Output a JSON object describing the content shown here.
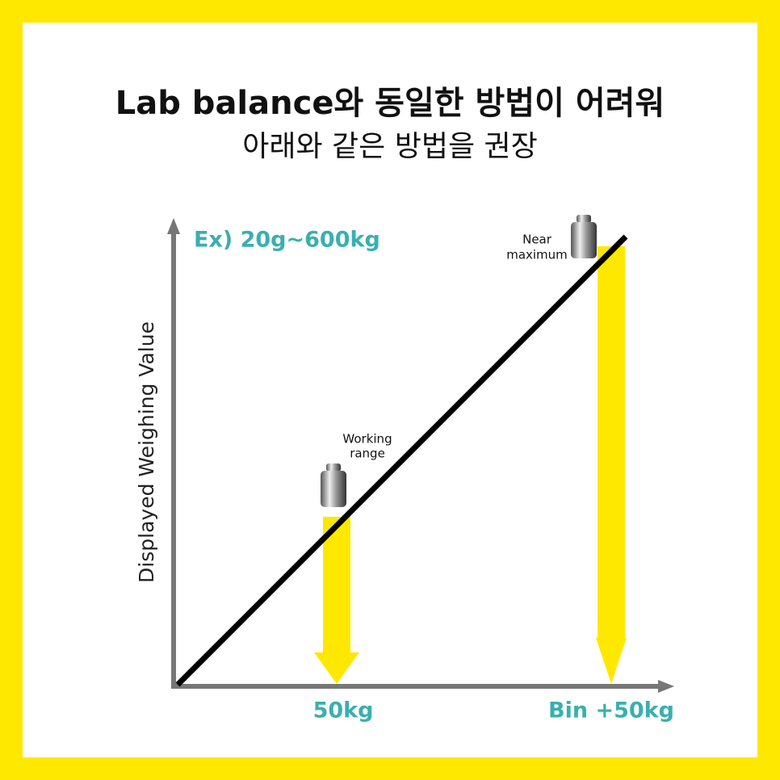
{
  "header": {
    "title": "Lab balance와 동일한 방법이 어려워",
    "subtitle": "아래와 같은 방법을 권장"
  },
  "diagram": {
    "y_axis_label": "Displayed Weighing Value",
    "range_note": "Ex) 20g~600kg",
    "annotations": [
      {
        "label": "Working range",
        "lines": [
          "Working",
          "range"
        ]
      },
      {
        "label": "Near maximum",
        "lines": [
          "Near",
          "maximum"
        ]
      }
    ],
    "x_labels": [
      "50kg",
      "Bin +50kg"
    ]
  }
}
